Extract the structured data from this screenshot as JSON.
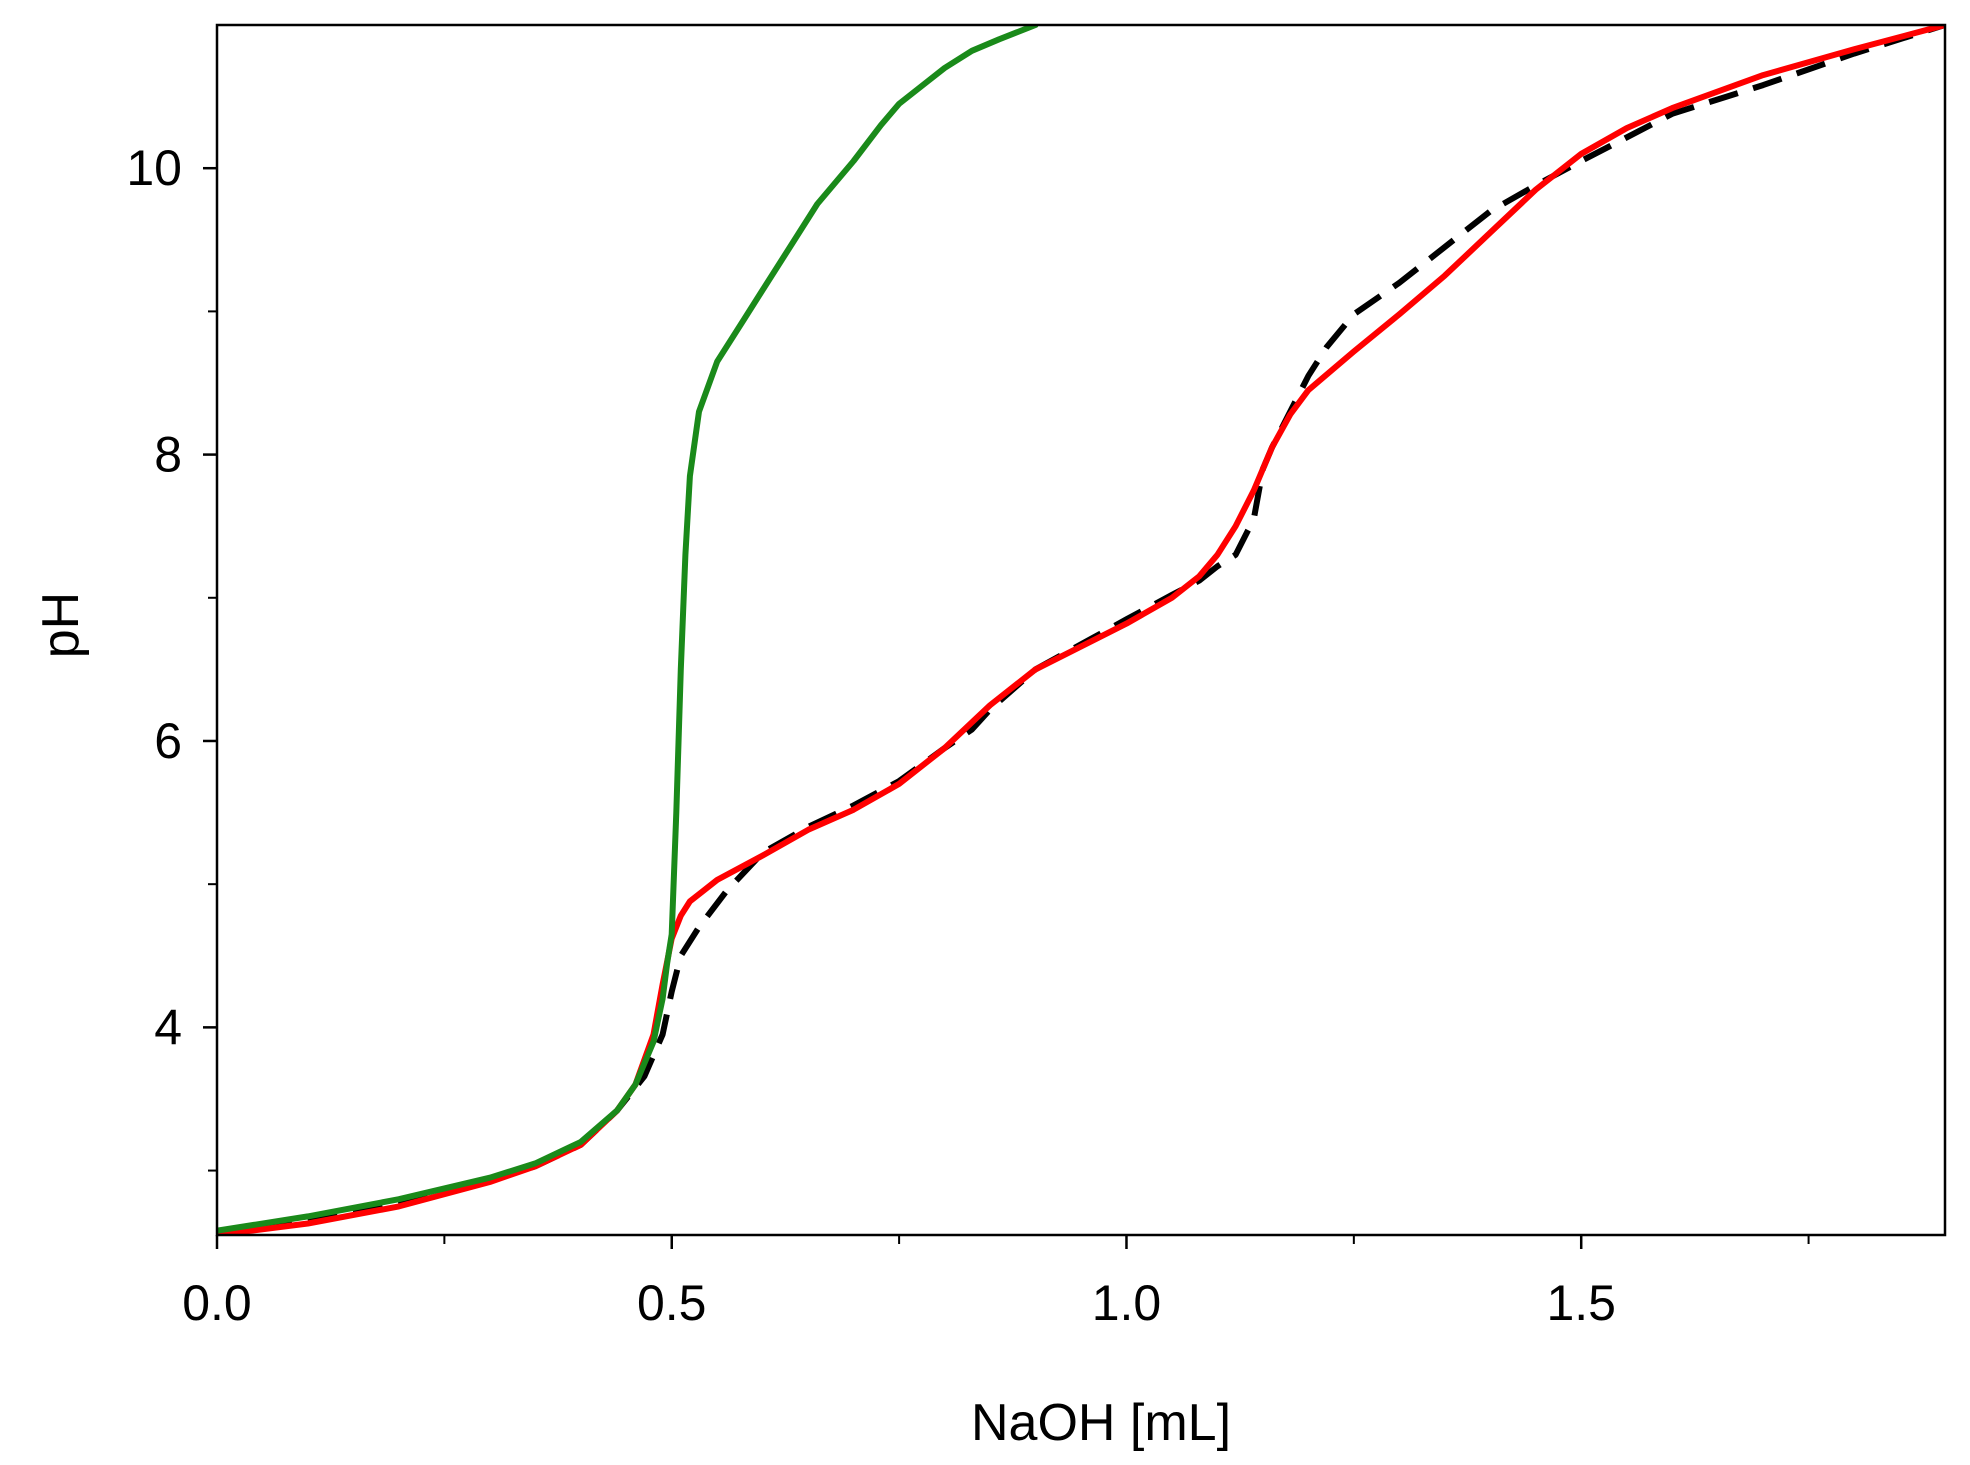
{
  "chart_data": {
    "type": "line",
    "title": "",
    "xlabel": "NaOH [mL]",
    "ylabel": "pH",
    "xlim": [
      0,
      1.9
    ],
    "ylim": [
      2.55,
      11
    ],
    "x_ticks": [
      0.0,
      0.5,
      1.0,
      1.5
    ],
    "x_tick_labels": [
      "0.0",
      "0.5",
      "1.0",
      "1.5"
    ],
    "x_minor_ticks": [
      0.25,
      0.75,
      1.25,
      1.75
    ],
    "y_ticks": [
      4,
      6,
      8,
      10
    ],
    "y_tick_labels": [
      "4",
      "6",
      "8",
      "10"
    ],
    "y_minor_ticks": [
      3,
      5,
      7,
      9
    ],
    "grid": false,
    "legend": "none",
    "series": [
      {
        "color": "#000000",
        "style": "dashed",
        "x": [
          0.0,
          0.1,
          0.2,
          0.3,
          0.35,
          0.4,
          0.44,
          0.47,
          0.49,
          0.5,
          0.51,
          0.53,
          0.56,
          0.6,
          0.65,
          0.7,
          0.75,
          0.8,
          0.83,
          0.85,
          0.9,
          1.0,
          1.05,
          1.08,
          1.1,
          1.12,
          1.14,
          1.15,
          1.16,
          1.18,
          1.2,
          1.22,
          1.25,
          1.3,
          1.35,
          1.4,
          1.45,
          1.5,
          1.6,
          1.7,
          1.8,
          1.9
        ],
        "y": [
          2.55,
          2.65,
          2.78,
          2.93,
          3.03,
          3.18,
          3.42,
          3.66,
          3.95,
          4.25,
          4.5,
          4.7,
          4.95,
          5.22,
          5.4,
          5.55,
          5.72,
          5.95,
          6.08,
          6.22,
          6.5,
          6.85,
          7.02,
          7.12,
          7.22,
          7.3,
          7.55,
          7.9,
          8.05,
          8.3,
          8.55,
          8.75,
          8.98,
          9.2,
          9.45,
          9.7,
          9.88,
          10.05,
          10.38,
          10.58,
          10.8,
          11.0
        ]
      },
      {
        "color": "#ff0000",
        "style": "solid",
        "x": [
          0.0,
          0.1,
          0.2,
          0.3,
          0.35,
          0.4,
          0.44,
          0.46,
          0.48,
          0.49,
          0.5,
          0.51,
          0.52,
          0.55,
          0.6,
          0.65,
          0.7,
          0.75,
          0.8,
          0.85,
          0.9,
          1.0,
          1.05,
          1.08,
          1.1,
          1.12,
          1.14,
          1.16,
          1.18,
          1.2,
          1.25,
          1.3,
          1.35,
          1.4,
          1.45,
          1.5,
          1.55,
          1.6,
          1.7,
          1.8,
          1.9
        ],
        "y": [
          2.55,
          2.63,
          2.75,
          2.92,
          3.03,
          3.18,
          3.42,
          3.6,
          3.95,
          4.3,
          4.62,
          4.78,
          4.88,
          5.03,
          5.2,
          5.38,
          5.52,
          5.7,
          5.95,
          6.25,
          6.5,
          6.82,
          7.0,
          7.15,
          7.3,
          7.5,
          7.75,
          8.05,
          8.28,
          8.45,
          8.72,
          8.98,
          9.25,
          9.55,
          9.85,
          10.1,
          10.28,
          10.42,
          10.65,
          10.83,
          11.0
        ]
      },
      {
        "color": "#1a8a1a",
        "style": "solid",
        "x": [
          0.0,
          0.1,
          0.2,
          0.3,
          0.35,
          0.4,
          0.44,
          0.46,
          0.48,
          0.49,
          0.495,
          0.5,
          0.505,
          0.51,
          0.515,
          0.52,
          0.53,
          0.55,
          0.58,
          0.6,
          0.63,
          0.66,
          0.7,
          0.73,
          0.75,
          0.78,
          0.8,
          0.83,
          0.86,
          0.9
        ],
        "y": [
          2.58,
          2.68,
          2.8,
          2.95,
          3.05,
          3.2,
          3.42,
          3.6,
          3.9,
          4.2,
          4.45,
          4.65,
          5.5,
          6.5,
          7.3,
          7.85,
          8.3,
          8.65,
          8.95,
          9.15,
          9.45,
          9.75,
          10.05,
          10.3,
          10.45,
          10.6,
          10.7,
          10.82,
          10.9,
          11.0
        ]
      }
    ]
  }
}
